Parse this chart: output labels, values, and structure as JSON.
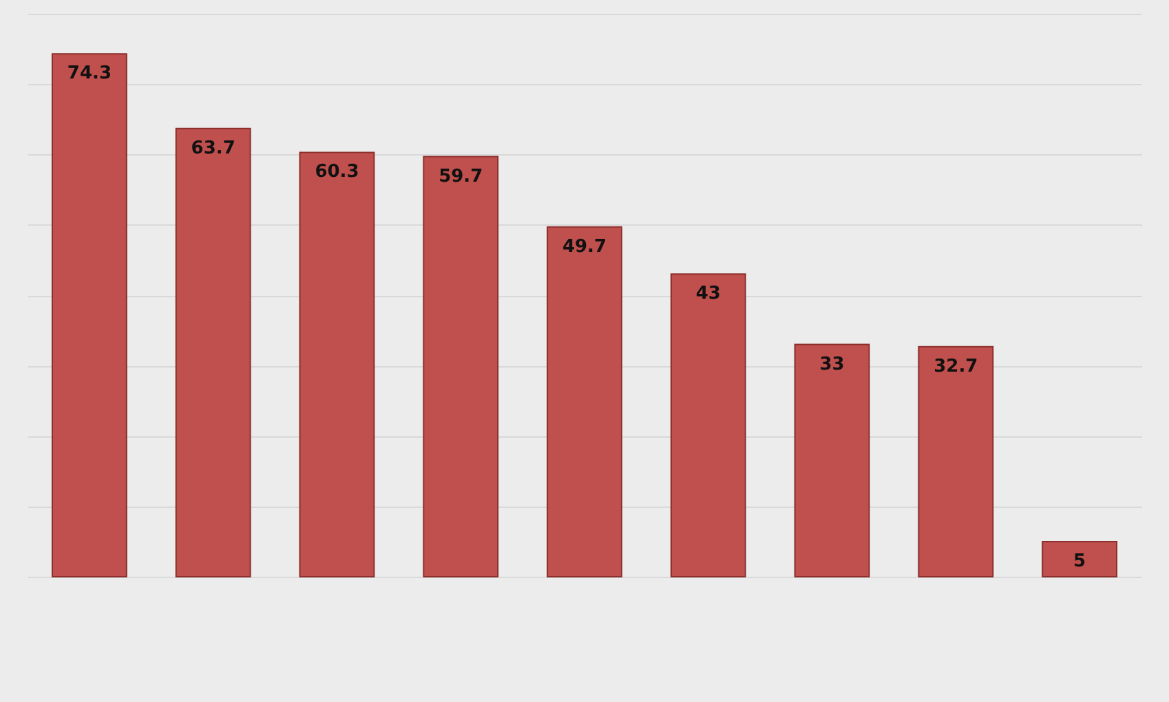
{
  "chart_data": {
    "type": "bar",
    "categories": [
      null,
      null,
      null,
      null,
      null,
      null,
      null,
      null,
      null
    ],
    "values": [
      74.3,
      63.7,
      60.3,
      59.7,
      49.7,
      43,
      33,
      32.7,
      5
    ],
    "data_labels": true,
    "color": "#c0504d",
    "ylim": [
      0,
      80
    ],
    "yticks": [
      {
        "value": 0,
        "label": null
      },
      {
        "value": 10,
        "label": null
      },
      {
        "value": 20,
        "label": null
      },
      {
        "value": 30,
        "label": null
      },
      {
        "value": 40,
        "label": null
      },
      {
        "value": 50,
        "label": null
      },
      {
        "value": 60,
        "label": null
      },
      {
        "value": 70,
        "label": null
      },
      {
        "value": 80,
        "label": null
      }
    ],
    "grid": "y",
    "tick_labels": false
  }
}
